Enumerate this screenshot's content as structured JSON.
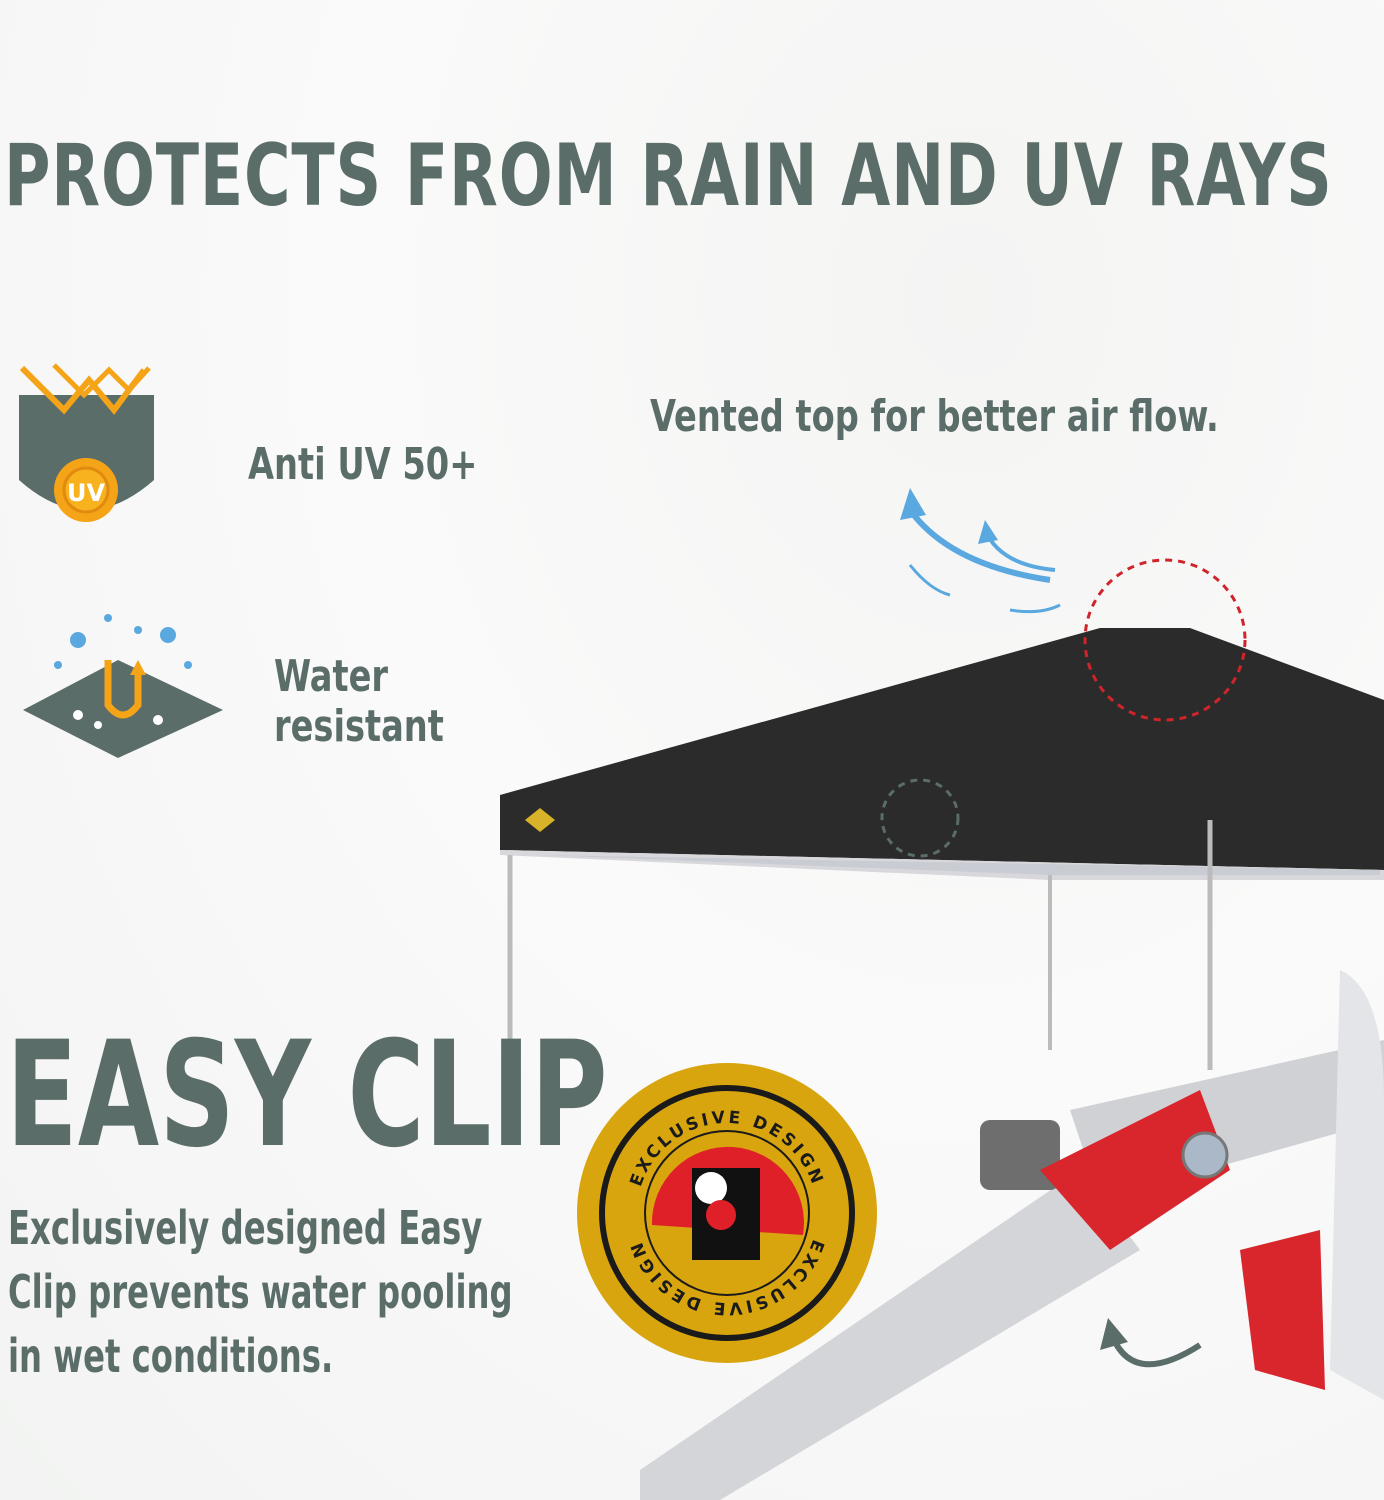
{
  "headline": "PROTECTS FROM RAIN AND UV RAYS",
  "features": [
    {
      "icon": "uv-shield-icon",
      "label": "Anti UV 50+",
      "icon_text": "UV"
    },
    {
      "icon": "water-resistant-icon",
      "label_line1": "Water",
      "label_line2": "resistant"
    }
  ],
  "vent_callout": "Vented top for better air flow.",
  "section_title": "EASY CLIP",
  "section_description": "Exclusively designed Easy Clip prevents water pooling in wet conditions.",
  "badge": {
    "text": "EXCLUSIVE DESIGN"
  },
  "colors": {
    "text": "#5a6d69",
    "accent_orange": "#f4a416",
    "badge_gold": "#d8a50e",
    "badge_red": "#e02028",
    "airflow_blue": "#5aa8e0",
    "canopy": "#2b2b2b"
  }
}
